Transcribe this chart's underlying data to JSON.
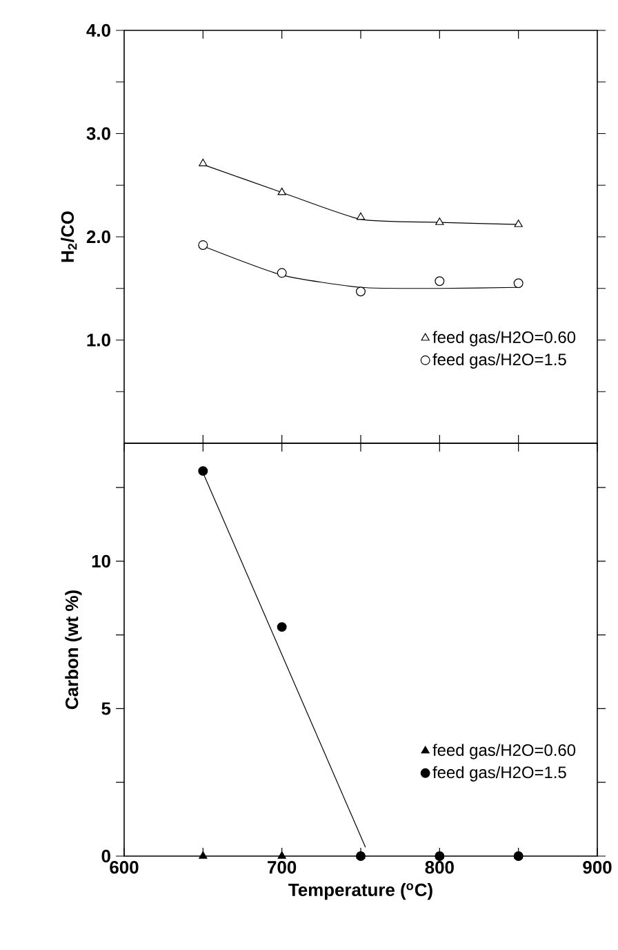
{
  "chart_data": [
    {
      "type": "scatter",
      "ylabel": "H$_{2}$/CO",
      "xlim": [
        600,
        900
      ],
      "xticks": [
        {
          "value": 650,
          "label": null
        },
        {
          "value": 700,
          "label": null
        },
        {
          "value": 750,
          "label": null
        },
        {
          "value": 800,
          "label": null
        },
        {
          "value": 850,
          "label": null
        }
      ],
      "ylim": [
        0,
        4
      ],
      "yticks": [
        {
          "value": 0.5,
          "label": null
        },
        {
          "value": 1,
          "label": "1.0"
        },
        {
          "value": 1.5,
          "label": null
        },
        {
          "value": 2,
          "label": "2.0"
        },
        {
          "value": 2.5,
          "label": null
        },
        {
          "value": 3,
          "label": "3.0"
        },
        {
          "value": 3.5,
          "label": null
        },
        {
          "value": 4,
          "label": "4.0"
        }
      ],
      "tick_labels": "y",
      "legend": "bottom right",
      "grid": false,
      "x": [
        650,
        700,
        750,
        800,
        850
      ],
      "series": [
        {
          "name": "feed gas/H2O=0.60",
          "color": "#000000",
          "marker": "triangle",
          "values": [
            2.71,
            2.43,
            2.19,
            2.14,
            2.12
          ]
        },
        {
          "name": "feed gas/H2O=1.5",
          "color": "#000000",
          "marker": "circle",
          "values": [
            1.92,
            1.65,
            1.47,
            1.57,
            1.55
          ]
        },
        {
          "type": "line",
          "color": "#000000",
          "x": [
            650,
            700,
            750,
            800,
            850
          ],
          "values": [
            2.7,
            2.43,
            2.17,
            2.14,
            2.12
          ]
        },
        {
          "type": "line",
          "color": "#000000",
          "x": [
            650,
            700,
            750,
            800,
            850
          ],
          "values": [
            1.91,
            1.63,
            1.51,
            1.5,
            1.51
          ]
        }
      ]
    },
    {
      "type": "scatter",
      "xlabel": "Temperature ($^{o}$C)",
      "ylabel": "Carbon (wt %)",
      "xlim": [
        600,
        900
      ],
      "xticks": [
        600,
        {
          "value": 650,
          "label": null
        },
        700,
        {
          "value": 750,
          "label": null
        },
        800,
        {
          "value": 850,
          "label": null
        },
        900
      ],
      "ylim": [
        0,
        14
      ],
      "yticks": [
        0,
        {
          "value": 2.5,
          "label": null
        },
        5,
        {
          "value": 7.5,
          "label": null
        },
        10,
        {
          "value": 12.5,
          "label": null
        }
      ],
      "legend": "bottom right",
      "grid": false,
      "x": [
        650,
        700,
        750,
        800,
        850
      ],
      "series": [
        {
          "name": "feed gas/H2O=0.60",
          "color": "#000000",
          "marker": "triangle",
          "values": [
            0,
            0,
            0,
            0,
            0
          ]
        },
        {
          "name": "feed gas/H2O=1.5",
          "color": "#000000",
          "marker": "circle",
          "values": [
            13.06,
            7.77,
            0,
            0,
            0
          ]
        },
        {
          "type": "line",
          "color": "#000000",
          "x": [
            650,
            753
          ],
          "values": [
            13.0,
            0.3
          ]
        }
      ]
    }
  ]
}
